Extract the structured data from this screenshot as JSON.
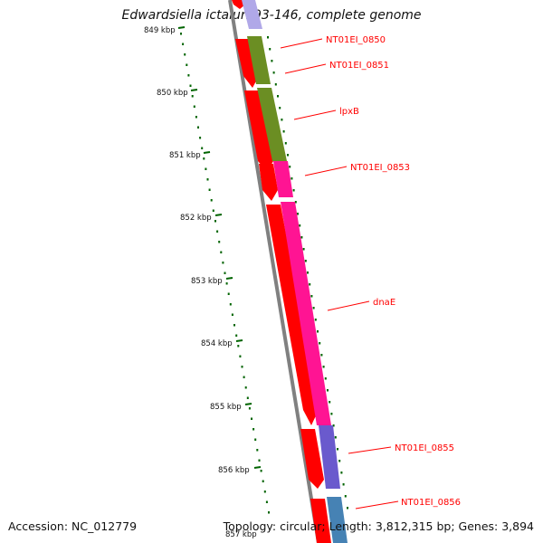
{
  "title": "Edwardsiella ictaluri 93-146, complete genome",
  "accession": "Accession: NC_012779",
  "summary": "Topology: circular; Length: 3,812,315 bp; Genes: 3,894",
  "scale_labels": [
    "849 kbp",
    "850 kbp",
    "851 kbp",
    "852 kbp",
    "853 kbp",
    "854 kbp",
    "855 kbp",
    "856 kbp",
    "857 kbp"
  ],
  "gene_labels": [
    "NT01EI_0850",
    "NT01EI_0851",
    "lpxB",
    "NT01EI_0853",
    "dnaE",
    "NT01EI_0855",
    "NT01EI_0856"
  ],
  "colors": {
    "cds": "#ff0000",
    "gene_olive": "#6b8e23",
    "gene_pink": "#ff1493",
    "gene_blue_violet": "#6a5acd",
    "gene_steel": "#4682b4",
    "gene_lavender": "#b0a8e8",
    "label": "#ff0000",
    "ticks": "#006400",
    "backbone": "#808080"
  }
}
